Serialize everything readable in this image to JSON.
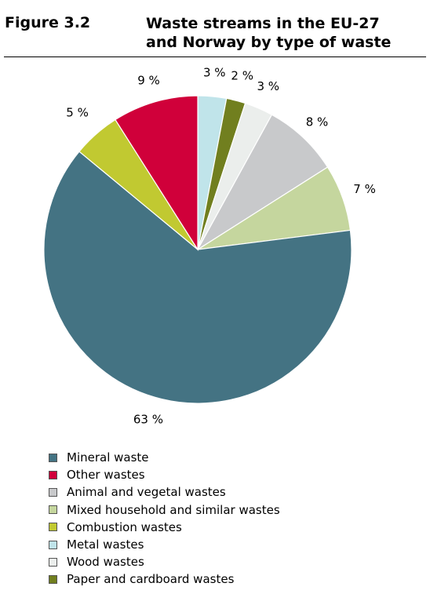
{
  "header": {
    "figure_label": "Figure 3.2",
    "title_line1": "Waste streams in the EU-27",
    "title_line2": "and Norway by type of waste"
  },
  "chart_data": {
    "type": "pie",
    "start_angle_deg": 0,
    "direction": "clockwise",
    "slices": [
      {
        "label": "Metal wastes",
        "value": 3,
        "display": "3 %",
        "color": "#c0e4ea"
      },
      {
        "label": "Paper and cardboard wastes",
        "value": 2,
        "display": "2 %",
        "color": "#717f1f"
      },
      {
        "label": "Wood wastes",
        "value": 3,
        "display": "3 %",
        "color": "#ebeeec"
      },
      {
        "label": "Animal and vegetal wastes",
        "value": 8,
        "display": "8 %",
        "color": "#c8c9cb"
      },
      {
        "label": "Mixed household and similar wastes",
        "value": 7,
        "display": "7 %",
        "color": "#c5d69e"
      },
      {
        "label": "Mineral waste",
        "value": 63,
        "display": "63 %",
        "color": "#447383"
      },
      {
        "label": "Combustion wastes",
        "value": 5,
        "display": "5 %",
        "color": "#c1c931"
      },
      {
        "label": "Other wastes",
        "value": 9,
        "display": "9 %",
        "color": "#d0003a"
      }
    ]
  },
  "legend": [
    {
      "label": "Mineral waste",
      "color": "#447383"
    },
    {
      "label": "Other wastes",
      "color": "#d0003a"
    },
    {
      "label": "Animal and vegetal wastes",
      "color": "#c8c9cb"
    },
    {
      "label": "Mixed household and similar wastes",
      "color": "#c5d69e"
    },
    {
      "label": "Combustion wastes",
      "color": "#c1c931"
    },
    {
      "label": "Metal wastes",
      "color": "#c0e4ea"
    },
    {
      "label": "Wood wastes",
      "color": "#ebeeec"
    },
    {
      "label": "Paper and cardboard wastes",
      "color": "#717f1f"
    }
  ]
}
